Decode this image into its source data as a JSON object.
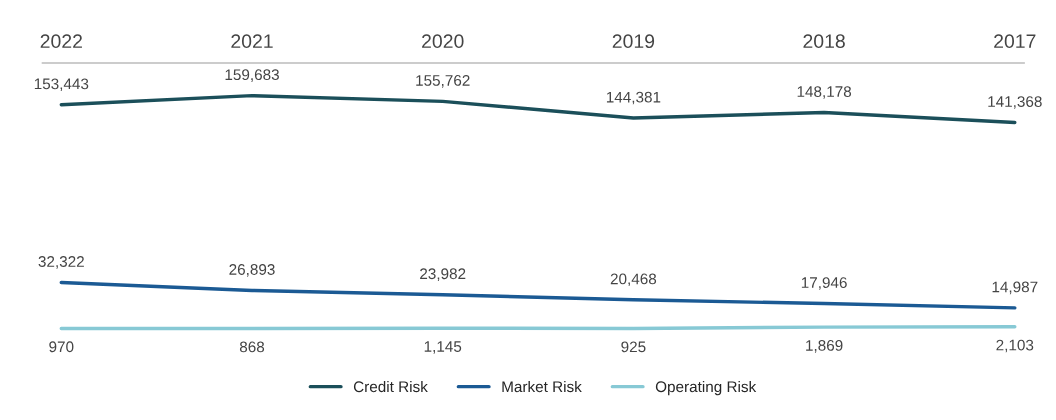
{
  "chart_data": {
    "type": "line",
    "categories": [
      "2022",
      "2021",
      "2020",
      "2019",
      "2018",
      "2017"
    ],
    "series": [
      {
        "name": "Credit Risk",
        "color": "#1b4f5a",
        "values": [
          153443,
          159683,
          155762,
          144381,
          148178,
          141368
        ],
        "value_labels": [
          "153,443",
          "159,683",
          "155,762",
          "144,381",
          "148,178",
          "141,368"
        ]
      },
      {
        "name": "Market Risk",
        "color": "#1b5a94",
        "values": [
          32322,
          26893,
          23982,
          20468,
          17946,
          14987
        ],
        "value_labels": [
          "32,322",
          "26,893",
          "23,982",
          "20,468",
          "17,946",
          "14,987"
        ]
      },
      {
        "name": "Operating Risk",
        "color": "#87c9d5",
        "values": [
          970,
          868,
          1145,
          925,
          1869,
          2103
        ],
        "value_labels": [
          "970",
          "868",
          "1,145",
          "925",
          "1,869",
          "2,103"
        ]
      }
    ],
    "legend": "bottom",
    "grid": false,
    "marker": "none",
    "line_style": "solid"
  }
}
